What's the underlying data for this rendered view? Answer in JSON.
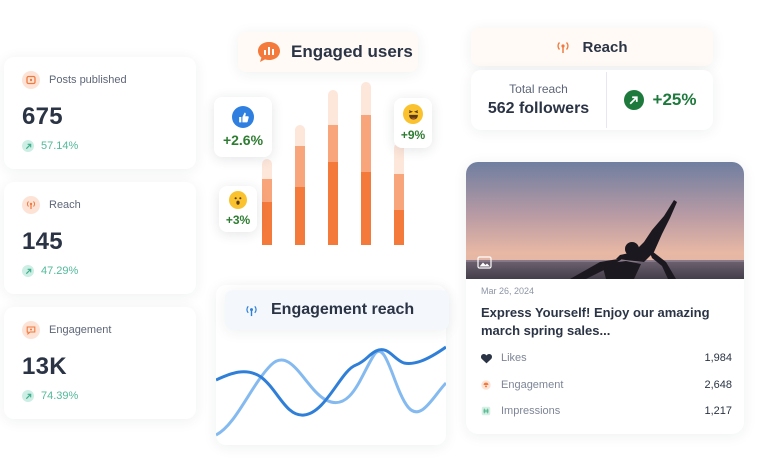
{
  "stats": [
    {
      "label": "Posts published",
      "value": "675",
      "change": "57.14%",
      "icon": "image-post-icon"
    },
    {
      "label": "Reach",
      "value": "145",
      "change": "47.29%",
      "icon": "broadcast-icon"
    },
    {
      "label": "Engagement",
      "value": "13K",
      "change": "74.39%",
      "icon": "chat-heart-icon"
    }
  ],
  "engaged_users": {
    "title": "Engaged users",
    "reactions": [
      {
        "icon": "thumbs-up-icon",
        "value": "+2.6%"
      },
      {
        "icon": "wow-face-icon",
        "value": "+3%"
      },
      {
        "icon": "laughing-face-icon",
        "value": "+9%"
      }
    ],
    "bars": [
      {
        "total": 0.52,
        "mid": 0.4,
        "dark": 0.26
      },
      {
        "total": 0.73,
        "mid": 0.6,
        "dark": 0.35
      },
      {
        "total": 0.94,
        "mid": 0.73,
        "dark": 0.5
      },
      {
        "total": 0.99,
        "mid": 0.79,
        "dark": 0.44
      },
      {
        "total": 0.62,
        "mid": 0.43,
        "dark": 0.21
      }
    ],
    "colors": {
      "dark": "#f47a3c",
      "mid": "#f9a57b",
      "light": "#fde6da"
    }
  },
  "reach_card": {
    "title": "Reach",
    "total_label": "Total reach",
    "total_value": "562 followers",
    "change": "+25%",
    "accent": "#1e7a3c"
  },
  "engagement_reach": {
    "title": "Engagement reach",
    "colors": {
      "primary": "#2f7fd8",
      "secondary": "#85baf0"
    }
  },
  "post": {
    "date": "Mar 26, 2024",
    "title": "Express Yourself! Enjoy our amazing march spring sales...",
    "metrics": [
      {
        "label": "Likes",
        "value": "1,984",
        "icon": "heart-icon"
      },
      {
        "label": "Engagement",
        "value": "2,648",
        "icon": "engagement-icon"
      },
      {
        "label": "Impressions",
        "value": "1,217",
        "icon": "impressions-icon"
      }
    ]
  }
}
